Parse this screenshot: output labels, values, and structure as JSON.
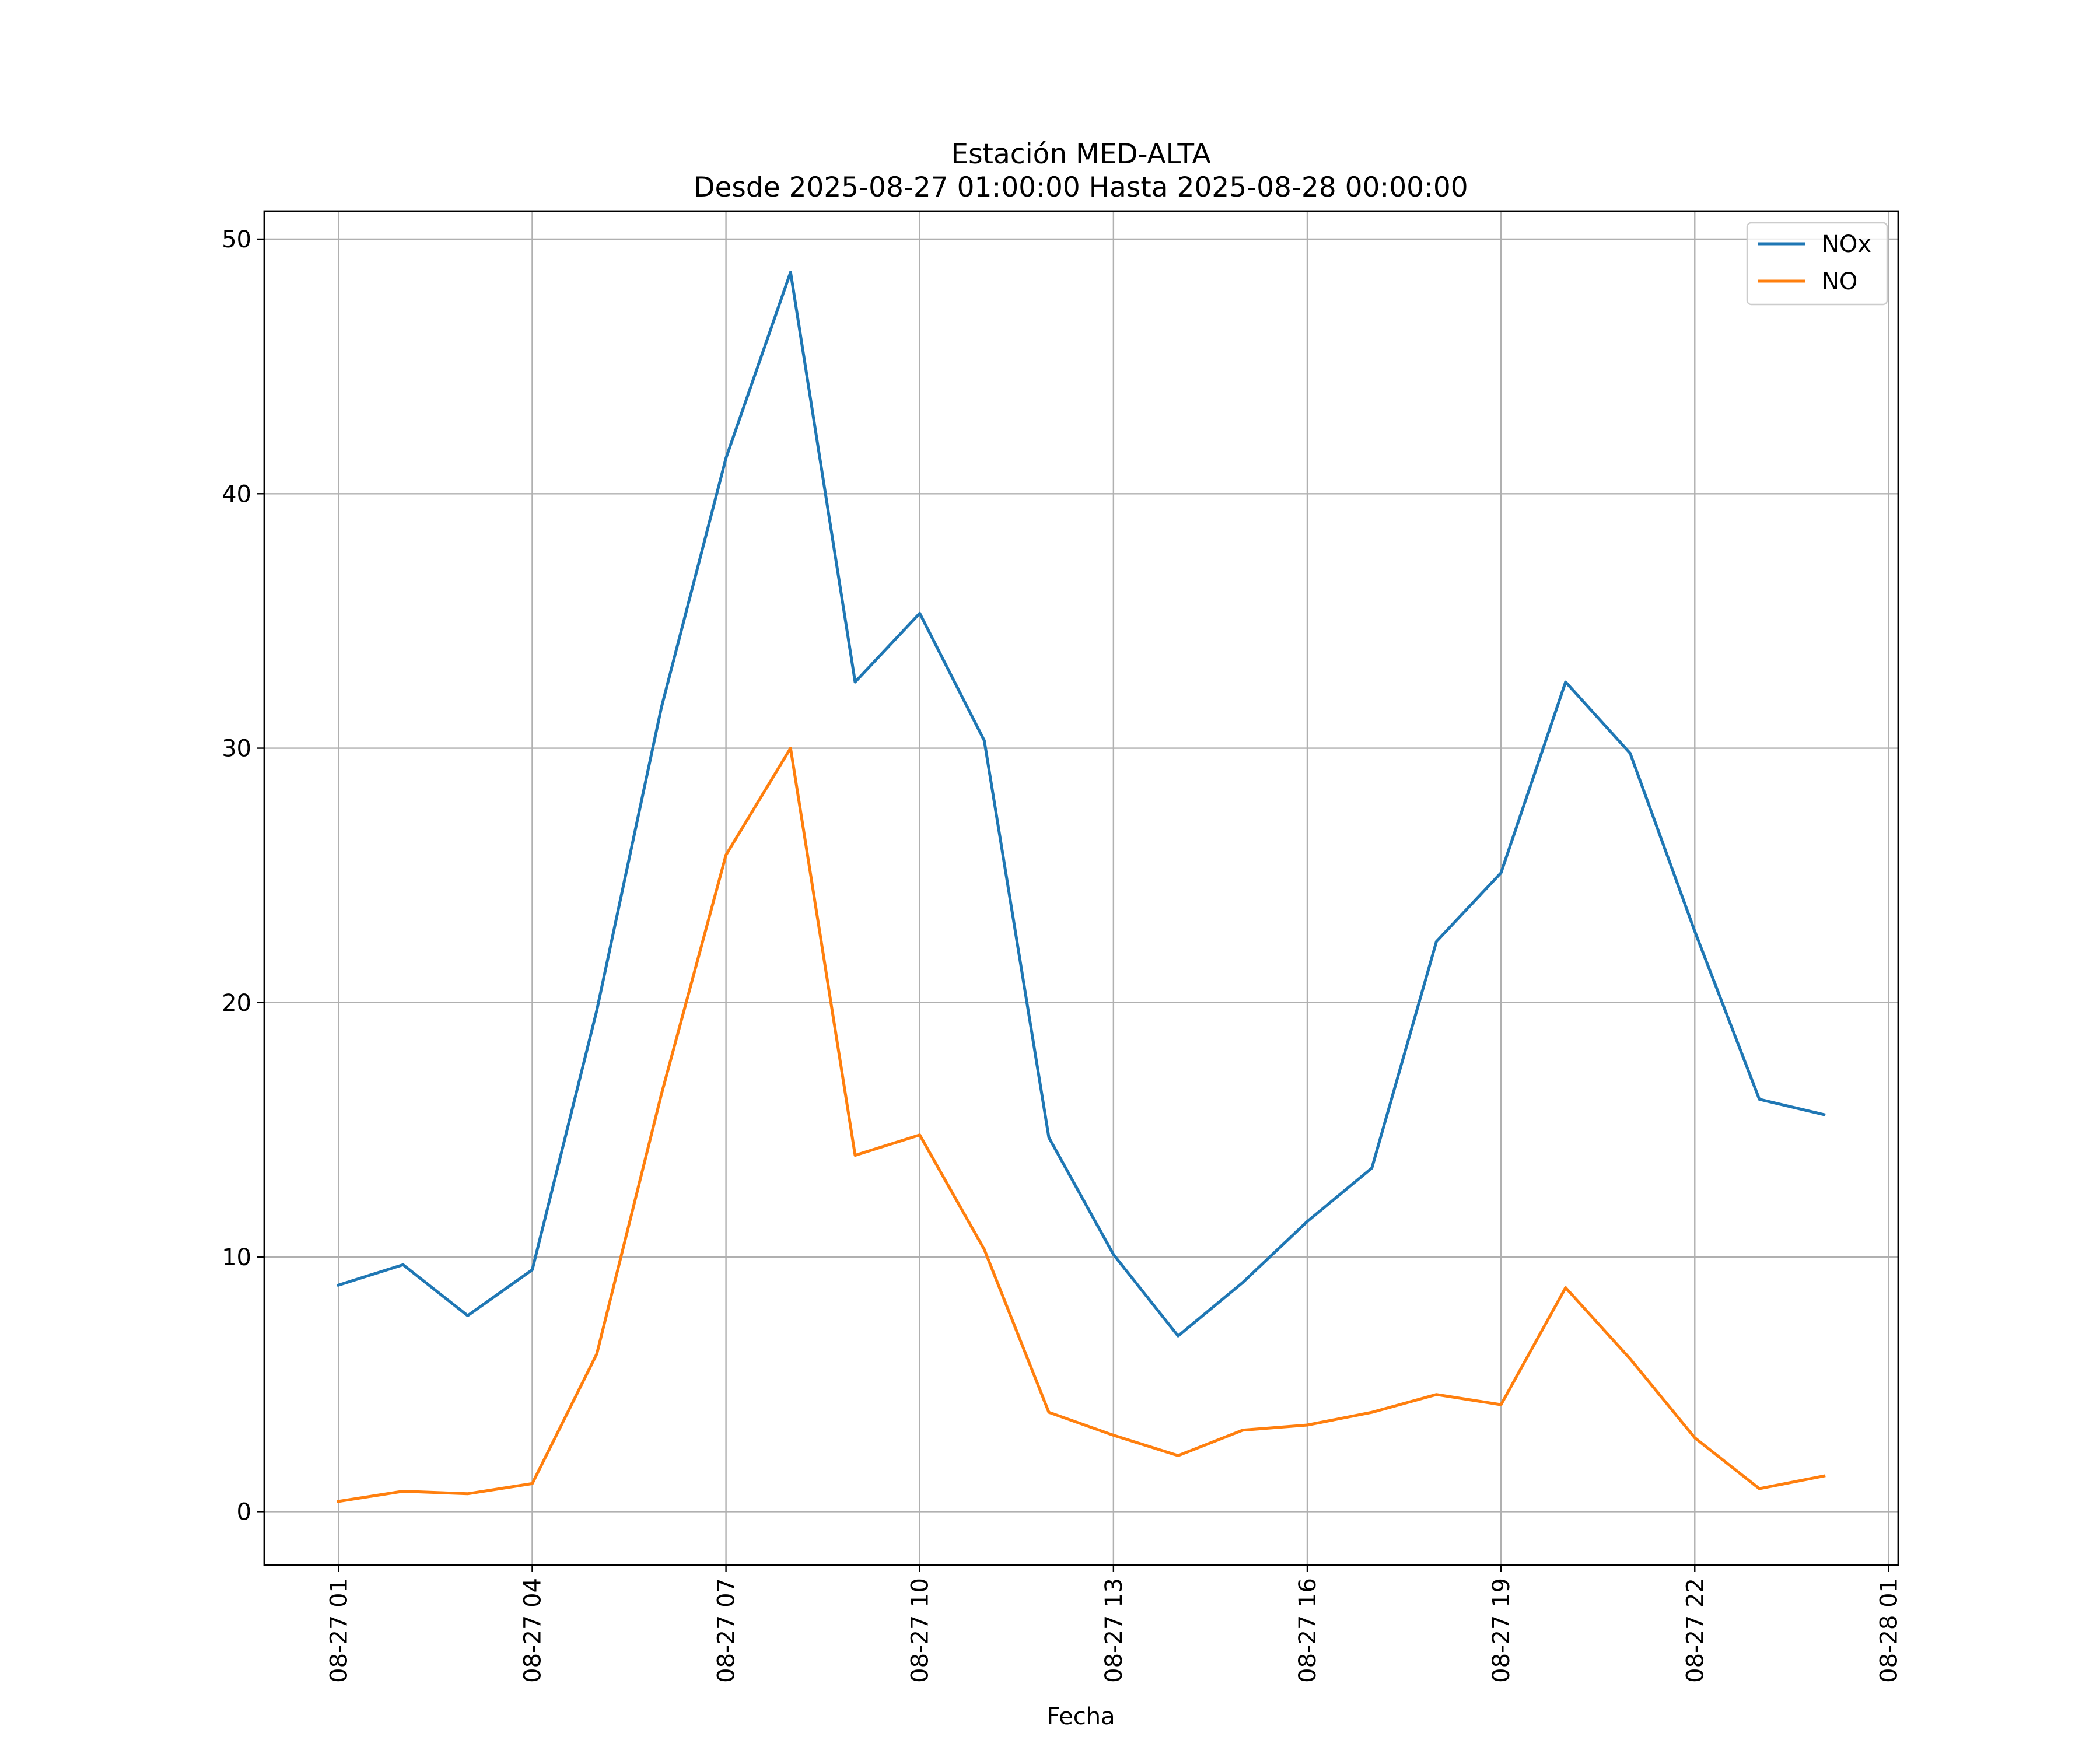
{
  "chart_data": {
    "type": "line",
    "title": "Estación MED-ALTA",
    "subtitle": "Desde 2025-08-27 01:00:00 Hasta 2025-08-28 00:00:00",
    "xlabel": "Fecha",
    "ylabel": "",
    "x": [
      "2025-08-27 01:00",
      "2025-08-27 02:00",
      "2025-08-27 03:00",
      "2025-08-27 04:00",
      "2025-08-27 05:00",
      "2025-08-27 06:00",
      "2025-08-27 07:00",
      "2025-08-27 08:00",
      "2025-08-27 09:00",
      "2025-08-27 10:00",
      "2025-08-27 11:00",
      "2025-08-27 12:00",
      "2025-08-27 13:00",
      "2025-08-27 14:00",
      "2025-08-27 15:00",
      "2025-08-27 16:00",
      "2025-08-27 17:00",
      "2025-08-27 18:00",
      "2025-08-27 19:00",
      "2025-08-27 20:00",
      "2025-08-27 21:00",
      "2025-08-27 22:00",
      "2025-08-27 23:00",
      "2025-08-28 00:00"
    ],
    "x_ticks": [
      "08-27 01",
      "08-27 04",
      "08-27 07",
      "08-27 10",
      "08-27 13",
      "08-27 16",
      "08-27 19",
      "08-27 22",
      "08-28 01"
    ],
    "xlim": [
      "2025-08-26 23:51",
      "2025-08-28 01:09"
    ],
    "y_ticks": [
      0,
      10,
      20,
      30,
      40,
      50
    ],
    "ylim": [
      -2.1,
      51.1
    ],
    "grid": true,
    "legend_position": "top-right",
    "series": [
      {
        "name": "NOx",
        "color": "#1f77b4",
        "values": [
          8.9,
          9.7,
          7.7,
          9.5,
          19.7,
          31.6,
          41.4,
          48.7,
          32.6,
          35.3,
          30.3,
          14.7,
          10.1,
          6.9,
          9.0,
          11.4,
          13.5,
          22.4,
          25.1,
          32.6,
          29.8,
          22.8,
          16.2,
          15.6
        ]
      },
      {
        "name": "NO",
        "color": "#ff7f0e",
        "values": [
          0.4,
          0.8,
          0.7,
          1.1,
          6.2,
          16.4,
          25.8,
          30.0,
          14.0,
          14.8,
          10.3,
          3.9,
          3.0,
          2.2,
          3.2,
          3.4,
          3.9,
          4.6,
          4.2,
          8.8,
          6.0,
          2.9,
          0.9,
          1.4
        ]
      }
    ]
  }
}
